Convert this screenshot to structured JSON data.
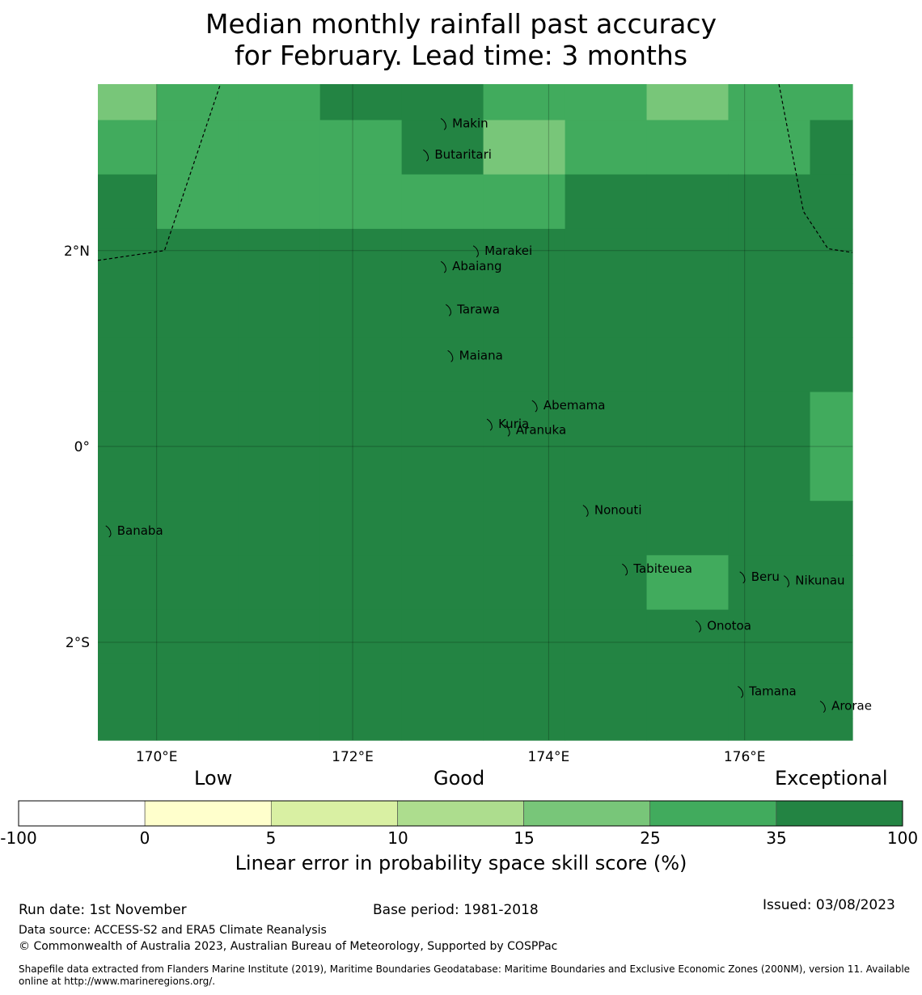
{
  "title": {
    "line1": "Median monthly rainfall past accuracy",
    "line2": "for February. Lead time: 3 months"
  },
  "map": {
    "lon_range": [
      169.4,
      177.1
    ],
    "lat_range": [
      -3.0,
      3.7
    ],
    "lon_ticks": [
      {
        "value": 170,
        "label": "170°E"
      },
      {
        "value": 172,
        "label": "172°E"
      },
      {
        "value": 174,
        "label": "174°E"
      },
      {
        "value": 176,
        "label": "176°E"
      }
    ],
    "lat_ticks": [
      {
        "value": 2,
        "label": "2°N"
      },
      {
        "value": 0,
        "label": "0°"
      },
      {
        "value": -2,
        "label": "2°S"
      }
    ],
    "grid_lon_edges": [
      169.4,
      170.0,
      170.833,
      171.667,
      172.5,
      173.333,
      174.167,
      175.0,
      175.833,
      176.667,
      177.1
    ],
    "grid_lat_edges": [
      3.7,
      3.333,
      2.778,
      2.222,
      1.667,
      1.111,
      0.556,
      0.0,
      -0.556,
      -1.111,
      -1.667,
      -2.222,
      -2.778,
      -3.0
    ],
    "grid_classes": [
      [
        4,
        5,
        5,
        6,
        6,
        5,
        5,
        4,
        5,
        5
      ],
      [
        5,
        5,
        5,
        5,
        6,
        4,
        5,
        5,
        5,
        6
      ],
      [
        6,
        5,
        5,
        5,
        5,
        5,
        6,
        6,
        6,
        6
      ],
      [
        6,
        6,
        6,
        6,
        6,
        6,
        6,
        6,
        6,
        6
      ],
      [
        6,
        6,
        6,
        6,
        6,
        6,
        6,
        6,
        6,
        6
      ],
      [
        6,
        6,
        6,
        6,
        6,
        6,
        6,
        6,
        6,
        6
      ],
      [
        6,
        6,
        6,
        6,
        6,
        6,
        6,
        6,
        6,
        5
      ],
      [
        6,
        6,
        6,
        6,
        6,
        6,
        6,
        6,
        6,
        5
      ],
      [
        6,
        6,
        6,
        6,
        6,
        6,
        6,
        6,
        6,
        6
      ],
      [
        6,
        6,
        6,
        6,
        6,
        6,
        6,
        5,
        6,
        6
      ],
      [
        6,
        6,
        6,
        6,
        6,
        6,
        6,
        6,
        6,
        6
      ],
      [
        6,
        6,
        6,
        6,
        6,
        6,
        6,
        6,
        6,
        6
      ],
      [
        6,
        6,
        6,
        6,
        6,
        6,
        6,
        6,
        6,
        6
      ]
    ],
    "islands": [
      {
        "name": "Makin",
        "lon": 172.95,
        "lat": 3.3
      },
      {
        "name": "Butaritari",
        "lon": 172.77,
        "lat": 2.98
      },
      {
        "name": "Marakei",
        "lon": 173.28,
        "lat": 2.0
      },
      {
        "name": "Abaiang",
        "lon": 172.95,
        "lat": 1.84
      },
      {
        "name": "Tarawa",
        "lon": 173.0,
        "lat": 1.4
      },
      {
        "name": "Maiana",
        "lon": 173.02,
        "lat": 0.93
      },
      {
        "name": "Abemama",
        "lon": 173.88,
        "lat": 0.42
      },
      {
        "name": "Kuria",
        "lon": 173.42,
        "lat": 0.23
      },
      {
        "name": "Aranuka",
        "lon": 173.6,
        "lat": 0.17
      },
      {
        "name": "Nonouti",
        "lon": 174.4,
        "lat": -0.65
      },
      {
        "name": "Banaba",
        "lon": 169.53,
        "lat": -0.86
      },
      {
        "name": "Tabiteuea",
        "lon": 174.8,
        "lat": -1.25
      },
      {
        "name": "Beru",
        "lon": 176.0,
        "lat": -1.33
      },
      {
        "name": "Nikunau",
        "lon": 176.45,
        "lat": -1.37
      },
      {
        "name": "Onotoa",
        "lon": 175.55,
        "lat": -1.83
      },
      {
        "name": "Tamana",
        "lon": 175.98,
        "lat": -2.5
      },
      {
        "name": "Arorae",
        "lon": 176.82,
        "lat": -2.65
      }
    ],
    "boundary_lines": [
      [
        [
          169.4,
          1.9
        ],
        [
          170.08,
          2.0
        ],
        [
          170.65,
          3.7
        ]
      ],
      [
        [
          176.35,
          3.7
        ],
        [
          176.6,
          2.4
        ],
        [
          176.85,
          2.02
        ],
        [
          177.1,
          1.98
        ]
      ]
    ]
  },
  "legend": {
    "categories": [
      "Low",
      "Good",
      "Exceptional"
    ],
    "boundaries": [
      "-100",
      "0",
      "5",
      "10",
      "15",
      "25",
      "35",
      "100"
    ],
    "colors": [
      "#ffffff",
      "#ffffcc",
      "#d9f0a3",
      "#addd8e",
      "#78c679",
      "#41ab5d",
      "#238443"
    ],
    "label": "Linear error in probability space skill score (%)"
  },
  "footer": {
    "run_date": "Run date: 1st November",
    "base_period": "Base period: 1981-2018",
    "issued": "Issued: 03/08/2023",
    "data_source": "Data source: ACCESS-S2 and ERA5 Climate Reanalysis",
    "copyright": "© Commonwealth of Australia 2023, Australian Bureau of Meteorology, Supported by COSPPac",
    "shapefile": "Shapefile data extracted from Flanders Marine Institute (2019), Maritime Boundaries Geodatabase: Maritime Boundaries and Exclusive Economic Zones (200NM), version 11. Available online at http://www.marineregions.org/."
  }
}
